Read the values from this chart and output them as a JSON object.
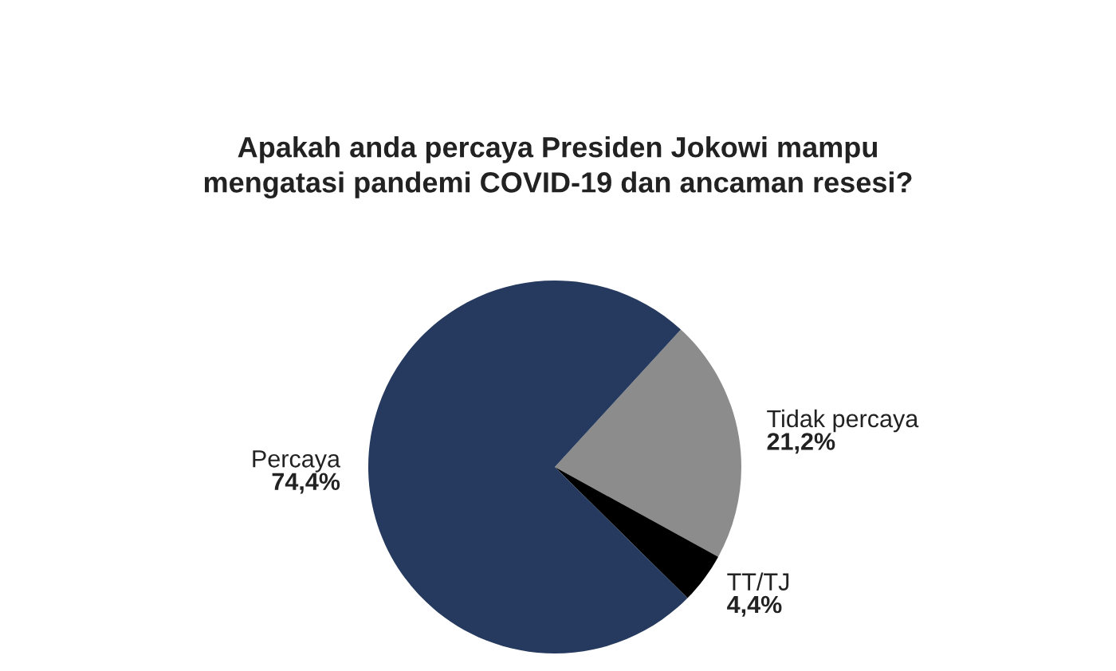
{
  "chart_data": {
    "type": "pie",
    "title": "Apakah anda percaya Presiden Jokowi mampu\nmengatasi pandemi COVID-19 dan ancaman resesi?",
    "categories": [
      "Tidak percaya",
      "TT/TJ",
      "Percaya"
    ],
    "values": [
      21.2,
      4.4,
      74.4
    ],
    "colors": [
      "#8c8c8c",
      "#000000",
      "#253a5e"
    ],
    "value_labels": [
      "21,2%",
      "4,4%",
      "74,4%"
    ]
  }
}
